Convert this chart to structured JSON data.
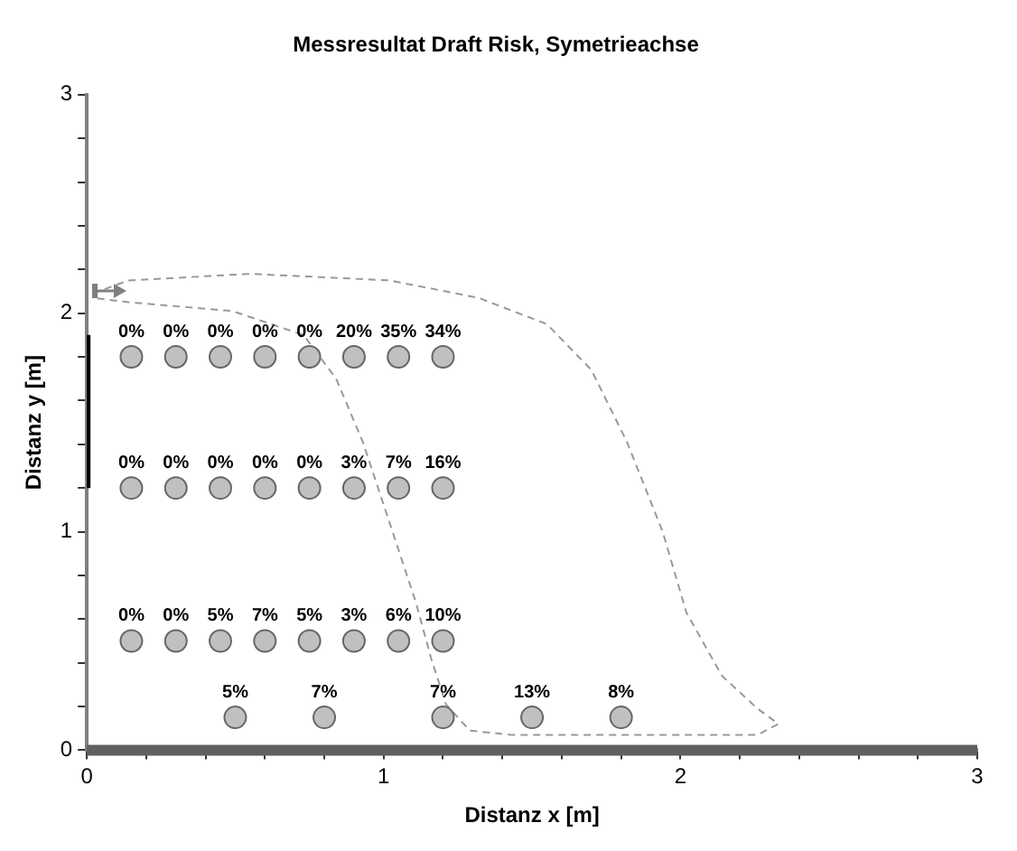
{
  "chart_data": {
    "type": "scatter",
    "title": "Messresultat Draft Risk, Symetrieachse",
    "xlabel": "Distanz x [m]",
    "ylabel": "Distanz y [m]",
    "xlim": [
      0,
      3
    ],
    "ylim": [
      0,
      3
    ],
    "xticks": [
      0,
      {
        "value": 0.2,
        "label": null
      },
      {
        "value": 0.4,
        "label": null
      },
      {
        "value": 0.6,
        "label": null
      },
      {
        "value": 0.8,
        "label": null
      },
      1,
      {
        "value": 1.2,
        "label": null
      },
      {
        "value": 1.4,
        "label": null
      },
      {
        "value": 1.6,
        "label": null
      },
      {
        "value": 1.8,
        "label": null
      },
      2,
      {
        "value": 2.2,
        "label": null
      },
      {
        "value": 2.4,
        "label": null
      },
      {
        "value": 2.6,
        "label": null
      },
      {
        "value": 2.8,
        "label": null
      },
      3
    ],
    "yticks": [
      0,
      {
        "value": 0.2,
        "label": null
      },
      {
        "value": 0.4,
        "label": null
      },
      {
        "value": 0.6,
        "label": null
      },
      {
        "value": 0.8,
        "label": null
      },
      1,
      {
        "value": 1.2,
        "label": null
      },
      {
        "value": 1.4,
        "label": null
      },
      {
        "value": 1.6,
        "label": null
      },
      {
        "value": 1.8,
        "label": null
      },
      2,
      {
        "value": 2.2,
        "label": null
      },
      {
        "value": 2.4,
        "label": null
      },
      {
        "value": 2.6,
        "label": null
      },
      {
        "value": 2.8,
        "label": null
      },
      3
    ],
    "grid": false,
    "legend": false,
    "ref_lines": [
      {
        "axis": "y",
        "value": 0,
        "color": "#606060"
      }
    ],
    "annotations": [
      {
        "text": "0%",
        "x": 0.15,
        "y": 1.8
      },
      {
        "text": "0%",
        "x": 0.3,
        "y": 1.8
      },
      {
        "text": "0%",
        "x": 0.45,
        "y": 1.8
      },
      {
        "text": "0%",
        "x": 0.6,
        "y": 1.8
      },
      {
        "text": "0%",
        "x": 0.75,
        "y": 1.8
      },
      {
        "text": "20%",
        "x": 0.9,
        "y": 1.8
      },
      {
        "text": "35%",
        "x": 1.05,
        "y": 1.8
      },
      {
        "text": "34%",
        "x": 1.2,
        "y": 1.8
      },
      {
        "text": "0%",
        "x": 0.15,
        "y": 1.2
      },
      {
        "text": "0%",
        "x": 0.3,
        "y": 1.2
      },
      {
        "text": "0%",
        "x": 0.45,
        "y": 1.2
      },
      {
        "text": "0%",
        "x": 0.6,
        "y": 1.2
      },
      {
        "text": "0%",
        "x": 0.75,
        "y": 1.2
      },
      {
        "text": "3%",
        "x": 0.9,
        "y": 1.2
      },
      {
        "text": "7%",
        "x": 1.05,
        "y": 1.2
      },
      {
        "text": "16%",
        "x": 1.2,
        "y": 1.2
      },
      {
        "text": "0%",
        "x": 0.15,
        "y": 0.5
      },
      {
        "text": "0%",
        "x": 0.3,
        "y": 0.5
      },
      {
        "text": "5%",
        "x": 0.45,
        "y": 0.5
      },
      {
        "text": "7%",
        "x": 0.6,
        "y": 0.5
      },
      {
        "text": "5%",
        "x": 0.75,
        "y": 0.5
      },
      {
        "text": "3%",
        "x": 0.9,
        "y": 0.5
      },
      {
        "text": "6%",
        "x": 1.05,
        "y": 0.5
      },
      {
        "text": "10%",
        "x": 1.2,
        "y": 0.5
      },
      {
        "text": "5%",
        "x": 0.5,
        "y": 0.15
      },
      {
        "text": "7%",
        "x": 0.8,
        "y": 0.15
      },
      {
        "text": "7%",
        "x": 1.2,
        "y": 0.15
      },
      {
        "text": "13%",
        "x": 1.5,
        "y": 0.15
      },
      {
        "text": "8%",
        "x": 1.8,
        "y": 0.15
      }
    ],
    "series": [
      {
        "color": "#c0c0c0",
        "marker": "circle",
        "x": [
          0.15,
          0.3,
          0.45,
          0.6,
          0.75,
          0.9,
          1.05,
          1.2,
          0.15,
          0.3,
          0.45,
          0.6,
          0.75,
          0.9,
          1.05,
          1.2,
          0.15,
          0.3,
          0.45,
          0.6,
          0.75,
          0.9,
          1.05,
          1.2,
          0.5,
          0.8,
          1.2,
          1.5,
          1.8
        ],
        "values": [
          1.8,
          1.8,
          1.8,
          1.8,
          1.8,
          1.8,
          1.8,
          1.8,
          1.2,
          1.2,
          1.2,
          1.2,
          1.2,
          1.2,
          1.2,
          1.2,
          0.5,
          0.5,
          0.5,
          0.5,
          0.5,
          0.5,
          0.5,
          0.5,
          0.15,
          0.15,
          0.15,
          0.15,
          0.15
        ]
      },
      {
        "type": "line",
        "color": "#999999",
        "marker": "none",
        "line_style": "dashed",
        "x": [
          0.02,
          0.14,
          0.55,
          1.02,
          1.32,
          1.55,
          1.7,
          1.82,
          1.94,
          2.02,
          2.14,
          2.26,
          2.33,
          2.26,
          2.02,
          1.61,
          1.43,
          1.29,
          1.21,
          1.16,
          1.11,
          1.03,
          0.93,
          0.84,
          0.73,
          0.49,
          0.14,
          0.02
        ],
        "values": [
          2.09,
          2.15,
          2.18,
          2.15,
          2.07,
          1.95,
          1.74,
          1.41,
          1.0,
          0.63,
          0.34,
          0.19,
          0.12,
          0.07,
          0.07,
          0.07,
          0.07,
          0.09,
          0.21,
          0.42,
          0.67,
          1.0,
          1.41,
          1.7,
          1.9,
          2.01,
          2.05,
          2.07
        ]
      },
      {
        "type": "line",
        "color": "#000000",
        "marker": "none",
        "line_style": "solid",
        "x": [
          0,
          0
        ],
        "values": [
          1.2,
          1.9
        ]
      }
    ]
  }
}
